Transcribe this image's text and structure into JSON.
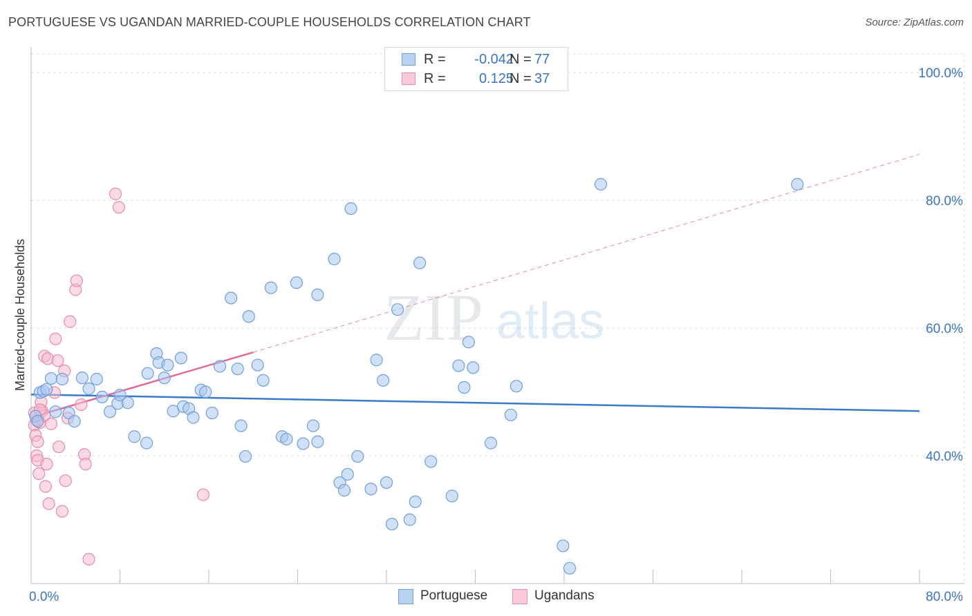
{
  "title": "PORTUGUESE VS UGANDAN MARRIED-COUPLE HOUSEHOLDS CORRELATION CHART",
  "source": "Source: ZipAtlas.com",
  "watermark": {
    "zip": "ZIP",
    "atlas": "atlas"
  },
  "colors": {
    "blue_fill": "#a9c7ee",
    "blue_stroke": "#6f9fd8",
    "blue_line": "#3a78c9",
    "pink_fill": "#f6bccd",
    "pink_stroke": "#e88aa8",
    "pink_line": "#e0679a",
    "axis_text": "#3a72c4",
    "grid": "#dddddd"
  },
  "legend": {
    "rows": [
      {
        "r_label": "R =",
        "r_value": "-0.042",
        "n_label": "N =",
        "n_value": "77",
        "series": "Portuguese"
      },
      {
        "r_label": "R =",
        "r_value": "0.125",
        "n_label": "N =",
        "n_value": "37",
        "series": "Ugandans"
      }
    ]
  },
  "bottom_legend": [
    "Portuguese",
    "Ugandans"
  ],
  "chart_data": {
    "type": "scatter",
    "title": "PORTUGUESE VS UGANDAN MARRIED-COUPLE HOUSEHOLDS CORRELATION CHART",
    "xlabel": "",
    "ylabel": "Married-couple Households",
    "xlim": [
      0,
      80
    ],
    "ylim": [
      20,
      104
    ],
    "x_tick_labels": [
      {
        "value": 0,
        "label": "0.0%"
      },
      {
        "value": 80,
        "label": "80.0%"
      }
    ],
    "y_tick_labels": [
      {
        "value": 100,
        "label": "100.0%"
      },
      {
        "value": 80,
        "label": "80.0%"
      },
      {
        "value": 60,
        "label": "60.0%"
      },
      {
        "value": 40,
        "label": "40.0%"
      }
    ],
    "grid": true,
    "series": [
      {
        "name": "Portuguese",
        "x": [
          0.4,
          0.6,
          0.8,
          1.1,
          1.4,
          1.8,
          2.2,
          2.8,
          3.4,
          3.9,
          4.6,
          5.2,
          5.9,
          6.4,
          7.1,
          7.8,
          8.0,
          8.7,
          9.3,
          10.5,
          11.3,
          10.4,
          11.5,
          12.0,
          12.3,
          12.8,
          13.5,
          13.7,
          14.2,
          14.6,
          15.3,
          15.7,
          16.3,
          17.0,
          18.6,
          18.9,
          18.0,
          19.3,
          19.6,
          20.4,
          20.9,
          21.6,
          22.6,
          23.0,
          23.9,
          24.5,
          25.4,
          25.8,
          25.8,
          27.3,
          27.8,
          28.2,
          28.5,
          28.8,
          29.4,
          30.6,
          31.1,
          31.7,
          32.0,
          32.5,
          33.0,
          34.1,
          34.6,
          35.0,
          36.0,
          37.9,
          38.5,
          39.0,
          39.4,
          39.8,
          41.4,
          43.2,
          43.7,
          47.9,
          48.5,
          51.3,
          69.0
        ],
        "y": [
          46.2,
          45.4,
          49.9,
          50.1,
          50.4,
          52.1,
          46.9,
          52.0,
          46.7,
          45.4,
          52.2,
          50.5,
          52.0,
          49.2,
          46.9,
          48.2,
          49.5,
          48.3,
          43.0,
          52.9,
          56.0,
          42.0,
          54.6,
          52.2,
          54.2,
          47.0,
          55.3,
          47.7,
          47.4,
          46.0,
          50.3,
          50.0,
          46.7,
          54.0,
          53.6,
          44.7,
          64.7,
          39.9,
          61.8,
          54.2,
          51.8,
          66.3,
          43.0,
          42.6,
          67.1,
          41.9,
          44.7,
          65.2,
          42.2,
          70.8,
          35.8,
          34.6,
          37.1,
          78.7,
          39.9,
          34.8,
          55.0,
          51.8,
          35.8,
          29.3,
          62.9,
          30.0,
          32.8,
          70.2,
          39.1,
          33.7,
          54.1,
          50.7,
          57.8,
          53.8,
          42.0,
          46.4,
          50.9,
          25.9,
          22.4,
          82.5,
          82.5
        ]
      },
      {
        "name": "Ugandans",
        "x": [
          0.3,
          0.4,
          0.5,
          0.6,
          0.7,
          0.8,
          1.0,
          1.2,
          1.3,
          1.4,
          1.6,
          1.8,
          2.1,
          2.5,
          2.8,
          3.1,
          3.5,
          4.0,
          4.8,
          4.9,
          7.6,
          7.9,
          15.5,
          0.9,
          1.2,
          2.2,
          3.0,
          4.1,
          5.2,
          0.5,
          0.3,
          0.6,
          0.8,
          1.5,
          2.4,
          3.3,
          4.5
        ],
        "y": [
          44.8,
          43.2,
          40.0,
          39.3,
          37.2,
          45.2,
          47.0,
          46.3,
          35.2,
          38.7,
          32.5,
          45.0,
          49.9,
          41.4,
          31.3,
          36.1,
          61.0,
          66.0,
          40.2,
          38.7,
          81.0,
          78.9,
          33.9,
          48.4,
          55.6,
          58.3,
          53.3,
          67.4,
          23.8,
          45.6,
          46.7,
          42.2,
          47.2,
          55.2,
          54.9,
          45.9,
          48.0
        ]
      }
    ],
    "trend_lines": [
      {
        "series": "Portuguese",
        "x": [
          0,
          80
        ],
        "y": [
          49.6,
          47.0
        ],
        "style": "solid"
      },
      {
        "series": "Ugandans",
        "x": [
          0,
          20
        ],
        "y": [
          46.0,
          56.2
        ],
        "style": "solid"
      },
      {
        "series": "Ugandans",
        "x": [
          20,
          80
        ],
        "y": [
          56.2,
          87.2
        ],
        "style": "dashed"
      }
    ]
  }
}
